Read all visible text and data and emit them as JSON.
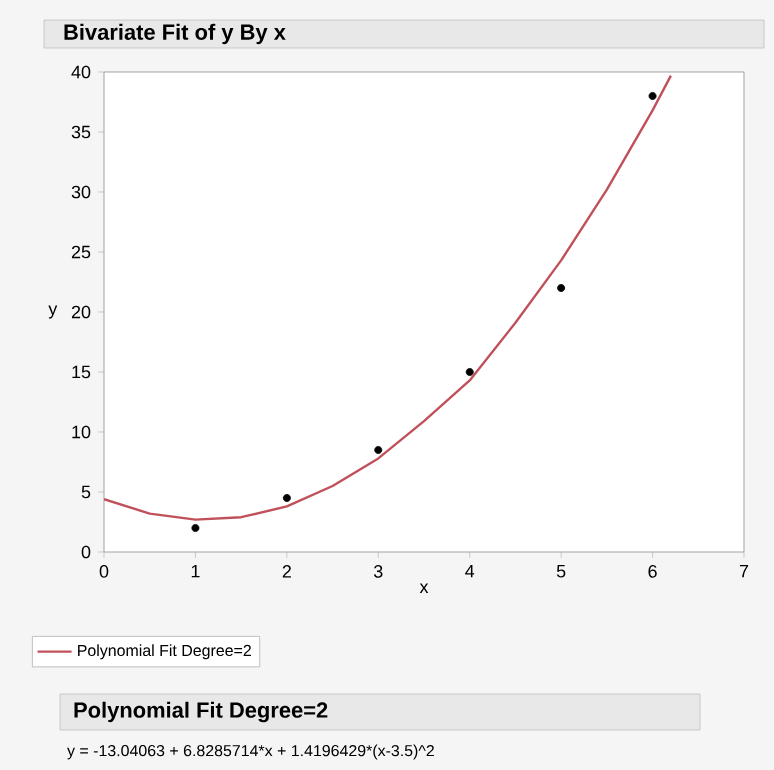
{
  "chart_data": {
    "type": "scatter",
    "title": "Bivariate Fit of y By x",
    "xlabel": "x",
    "ylabel": "y",
    "xlim": [
      0,
      7
    ],
    "ylim": [
      0,
      40
    ],
    "xticks": [
      0,
      1,
      2,
      3,
      4,
      5,
      6,
      7
    ],
    "yticks": [
      0,
      5,
      10,
      15,
      20,
      25,
      30,
      35,
      40
    ],
    "grid": false,
    "legend": "bottom",
    "series": [
      {
        "type": "scatter",
        "color": "#000000",
        "marker": "circle",
        "x": [
          1,
          2,
          3,
          4,
          5,
          6
        ],
        "values": [
          2,
          4.5,
          8.5,
          15,
          22,
          38
        ]
      },
      {
        "type": "line",
        "name": "Polynomial Fit Degree=2",
        "color": "#c0505a",
        "marker": "none",
        "line_style": "solid",
        "x": [
          0,
          0.5,
          1,
          1.5,
          2,
          2.5,
          3,
          3.5,
          4,
          4.5,
          5,
          5.5,
          6,
          6.2
        ],
        "values": [
          4.4,
          3.2,
          2.7,
          2.9,
          3.8,
          5.5,
          7.8,
          10.9,
          14.3,
          19.1,
          24.3,
          30.2,
          36.8,
          39.7
        ]
      }
    ],
    "annotations": [
      "Polynomial Fit Degree=2",
      "y = -13.04063 + 6.8285714*x + 1.4196429*(x-3.5)^2"
    ]
  }
}
